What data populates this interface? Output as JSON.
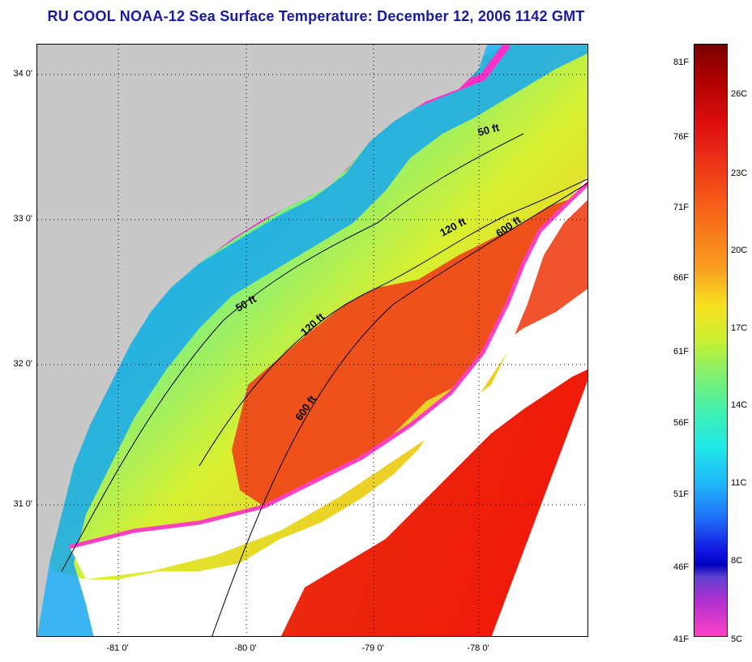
{
  "title": "RU COOL  NOAA-12  Sea Surface Temperature:  December 12, 2006 1142 GMT",
  "colors": {
    "land": "#c8c8c8",
    "cloud": "#ffffff",
    "coast_line": "#000000",
    "title": "#1a1aa0"
  },
  "lat_ticks": [
    "34 0'",
    "33 0'",
    "32 0'",
    "31 0'"
  ],
  "lon_ticks": [
    "-81 0'",
    "-80 0'",
    "-79 0'",
    "-78 0'"
  ],
  "contours": [
    {
      "label": "50 ft",
      "id": "a"
    },
    {
      "label": "120 ft",
      "id": "b"
    },
    {
      "label": "600 ft",
      "id": "c"
    },
    {
      "label": "50 ft",
      "id": "d"
    },
    {
      "label": "120 ft",
      "id": "e"
    },
    {
      "label": "600 ft",
      "id": "f"
    }
  ],
  "colorbar": {
    "fahrenheit": [
      "81F",
      "76F",
      "71F",
      "66F",
      "61F",
      "56F",
      "51F",
      "46F",
      "41F"
    ],
    "celsius": [
      "26C",
      "23C",
      "20C",
      "17C",
      "14C",
      "11C",
      "8C",
      "5C"
    ]
  }
}
